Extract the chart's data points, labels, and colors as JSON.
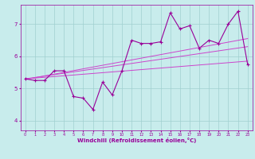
{
  "xlabel": "Windchill (Refroidissement éolien,°C)",
  "ylabel": "",
  "bg_color": "#c8ecec",
  "grid_color": "#a0d0d0",
  "line_color": "#990099",
  "trend_color": "#cc44cc",
  "xlim": [
    -0.5,
    23.5
  ],
  "ylim": [
    3.7,
    7.6
  ],
  "xticks": [
    0,
    1,
    2,
    3,
    4,
    5,
    6,
    7,
    8,
    9,
    10,
    11,
    12,
    13,
    14,
    15,
    16,
    17,
    18,
    19,
    20,
    21,
    22,
    23
  ],
  "yticks": [
    4,
    5,
    6,
    7
  ],
  "data_x": [
    0,
    1,
    2,
    3,
    4,
    5,
    6,
    7,
    8,
    9,
    10,
    11,
    12,
    13,
    14,
    15,
    16,
    17,
    18,
    19,
    20,
    21,
    22,
    23
  ],
  "data_y": [
    5.3,
    5.25,
    5.25,
    5.55,
    5.55,
    4.75,
    4.7,
    4.35,
    5.2,
    4.8,
    5.55,
    6.5,
    6.4,
    6.4,
    6.45,
    7.35,
    6.85,
    6.95,
    6.25,
    6.5,
    6.4,
    7.0,
    7.4,
    5.75
  ],
  "trend1_x": [
    0,
    23
  ],
  "trend1_y": [
    5.3,
    5.85
  ],
  "trend2_x": [
    0,
    23
  ],
  "trend2_y": [
    5.28,
    6.55
  ],
  "trend3_x": [
    0,
    23
  ],
  "trend3_y": [
    5.3,
    6.3
  ]
}
